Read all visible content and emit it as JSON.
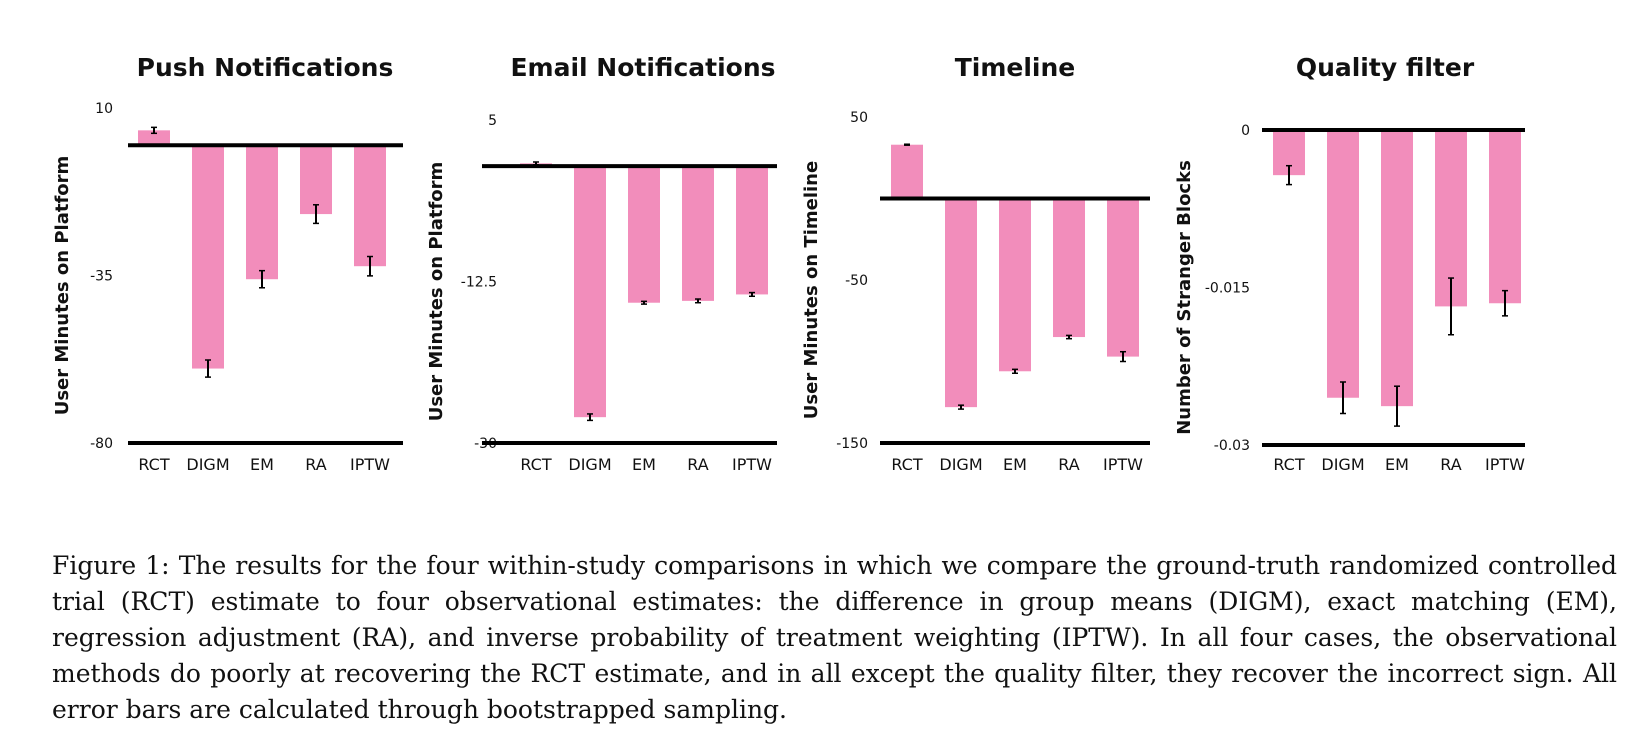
{
  "colors": {
    "bar": "#f28dbb",
    "axis": "#000000",
    "text": "#111111"
  },
  "chart_data": [
    {
      "type": "bar",
      "title": "Push Notifications",
      "ylabel": "User Minutes on Platform",
      "categories": [
        "RCT",
        "DIGM",
        "EM",
        "RA",
        "IPTW"
      ],
      "values": [
        4,
        -60,
        -36,
        -18.5,
        -32.5
      ],
      "error": [
        0.8,
        2.3,
        2.3,
        2.5,
        2.6
      ],
      "yticks": [
        "10",
        "-35",
        "-80"
      ],
      "ytick_values": [
        10,
        -35,
        -80
      ],
      "ylim": [
        -80,
        10
      ]
    },
    {
      "type": "bar",
      "title": "Email Notifications",
      "ylabel": "User Minutes on Platform",
      "categories": [
        "RCT",
        "DIGM",
        "EM",
        "RA",
        "IPTW"
      ],
      "values": [
        0.3,
        -27.2,
        -14.8,
        -14.6,
        -13.9
      ],
      "error": [
        0.15,
        0.35,
        0.15,
        0.2,
        0.2
      ],
      "yticks": [
        "5",
        "-12.5",
        "-30"
      ],
      "ytick_values": [
        5,
        -12.5,
        -30
      ],
      "ylim": [
        -30,
        5
      ]
    },
    {
      "type": "bar",
      "title": "Timeline",
      "ylabel": "User Minutes on Timeline",
      "categories": [
        "RCT",
        "DIGM",
        "EM",
        "RA",
        "IPTW"
      ],
      "values": [
        33,
        -128,
        -106,
        -85,
        -97
      ],
      "error": [
        0.3,
        1.2,
        1.2,
        1.0,
        3.0
      ],
      "yticks": [
        "50",
        "-50",
        "-150"
      ],
      "ytick_values": [
        50,
        -50,
        -150
      ],
      "ylim": [
        -150,
        50
      ]
    },
    {
      "type": "bar",
      "title": "Quality filter",
      "ylabel": "Number of Stranger Blocks",
      "categories": [
        "RCT",
        "DIGM",
        "EM",
        "RA",
        "IPTW"
      ],
      "values": [
        -0.0043,
        -0.0255,
        -0.0263,
        -0.0168,
        -0.0165
      ],
      "error": [
        0.0009,
        0.0015,
        0.0019,
        0.0027,
        0.0012
      ],
      "yticks": [
        "0",
        "-0.015",
        "-0.03"
      ],
      "ytick_values": [
        0,
        -0.015,
        -0.03
      ],
      "ylim": [
        -0.03,
        0
      ]
    }
  ],
  "caption": "Figure 1: The results for the four within-study comparisons in which we compare the ground-truth randomized controlled trial (RCT) estimate to four observational estimates: the difference in group means (DIGM), exact matching (EM), regression adjustment (RA), and inverse probability of treatment weighting (IPTW). In all four cases, the observational methods do poorly at recovering the RCT estimate, and in all except the quality filter, they recover the incorrect sign. All error bars are calculated through bootstrapped sampling."
}
